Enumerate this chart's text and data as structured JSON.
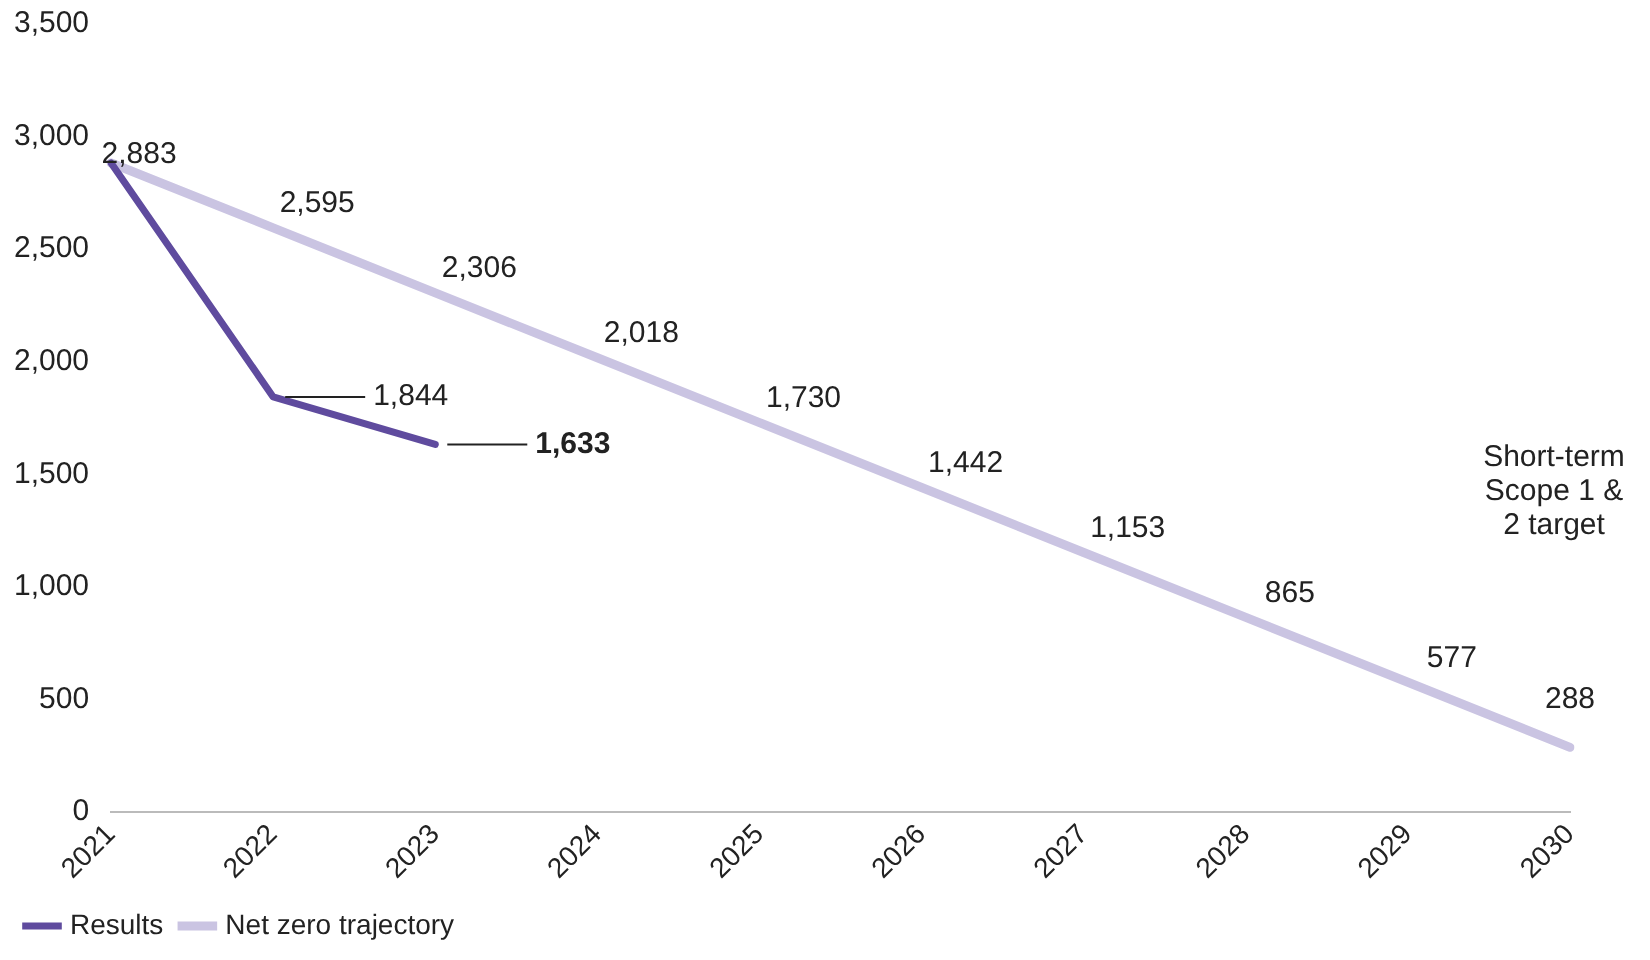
{
  "chart_data": {
    "type": "line",
    "categories": [
      "2021",
      "2022",
      "2023",
      "2024",
      "2025",
      "2026",
      "2027",
      "2028",
      "2029",
      "2030"
    ],
    "series": [
      {
        "name": "Results",
        "color": "#5f4b9e",
        "values": [
          2883,
          1844,
          1633,
          null,
          null,
          null,
          null,
          null,
          null,
          null
        ],
        "value_labels": [
          null,
          "1,844",
          "1,633",
          null,
          null,
          null,
          null,
          null,
          null,
          null
        ]
      },
      {
        "name": "Net zero trajectory",
        "color": "#cac4e2",
        "values": [
          2883,
          2595,
          2306,
          2018,
          1730,
          1442,
          1153,
          865,
          577,
          288
        ],
        "value_labels": [
          "2,883",
          "2,595",
          "2,306",
          "2,018",
          "1,730",
          "1,442",
          "1,153",
          "865",
          "577",
          "288"
        ]
      }
    ],
    "ylim": [
      0,
      3500
    ],
    "yticks": [
      0,
      500,
      {
        "value": 1000,
        "label": "1,000"
      },
      {
        "value": 1500,
        "label": "1,500"
      },
      {
        "value": 2000,
        "label": "2,000"
      },
      {
        "value": 2500,
        "label": "2,500"
      },
      {
        "value": 3000,
        "label": "3,000"
      },
      {
        "value": 3500,
        "label": "3,500"
      }
    ],
    "grid": false,
    "legend": "bottom left",
    "marker": "none",
    "line_style": "solid",
    "annotations": [
      "Short-term Scope 1 & 2 target"
    ]
  }
}
